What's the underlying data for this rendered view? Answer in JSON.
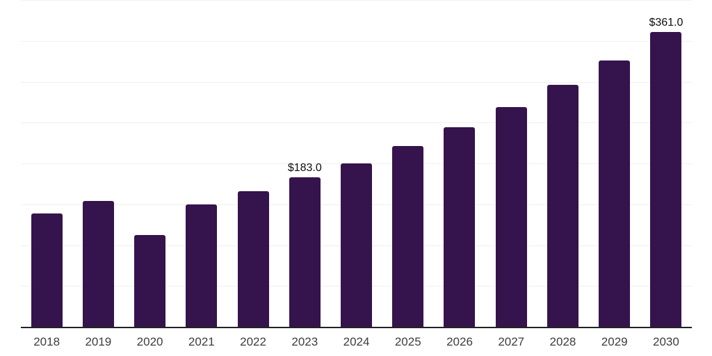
{
  "chart_data": {
    "type": "bar",
    "title": "",
    "xlabel": "",
    "ylabel": "",
    "categories": [
      "2018",
      "2019",
      "2020",
      "2021",
      "2022",
      "2023",
      "2024",
      "2025",
      "2026",
      "2027",
      "2028",
      "2029",
      "2030"
    ],
    "values": [
      139,
      154,
      112,
      150,
      166,
      183,
      200,
      221,
      244,
      269,
      296,
      326,
      361
    ],
    "data_labels": [
      "",
      "",
      "",
      "",
      "",
      "$183.0",
      "",
      "",
      "",
      "",
      "",
      "",
      "$361.0"
    ],
    "ylim": [
      0,
      400
    ],
    "gridline_step": 50,
    "grid": "horizontal only, no y tick labels",
    "legend_position": "none",
    "bar_color": "#35134C",
    "axis_line_color": "#242126",
    "gridline_color": "#f0f0f0",
    "tick_label_color": "#3d3d3d",
    "data_label_color": "#0d0d0d"
  }
}
